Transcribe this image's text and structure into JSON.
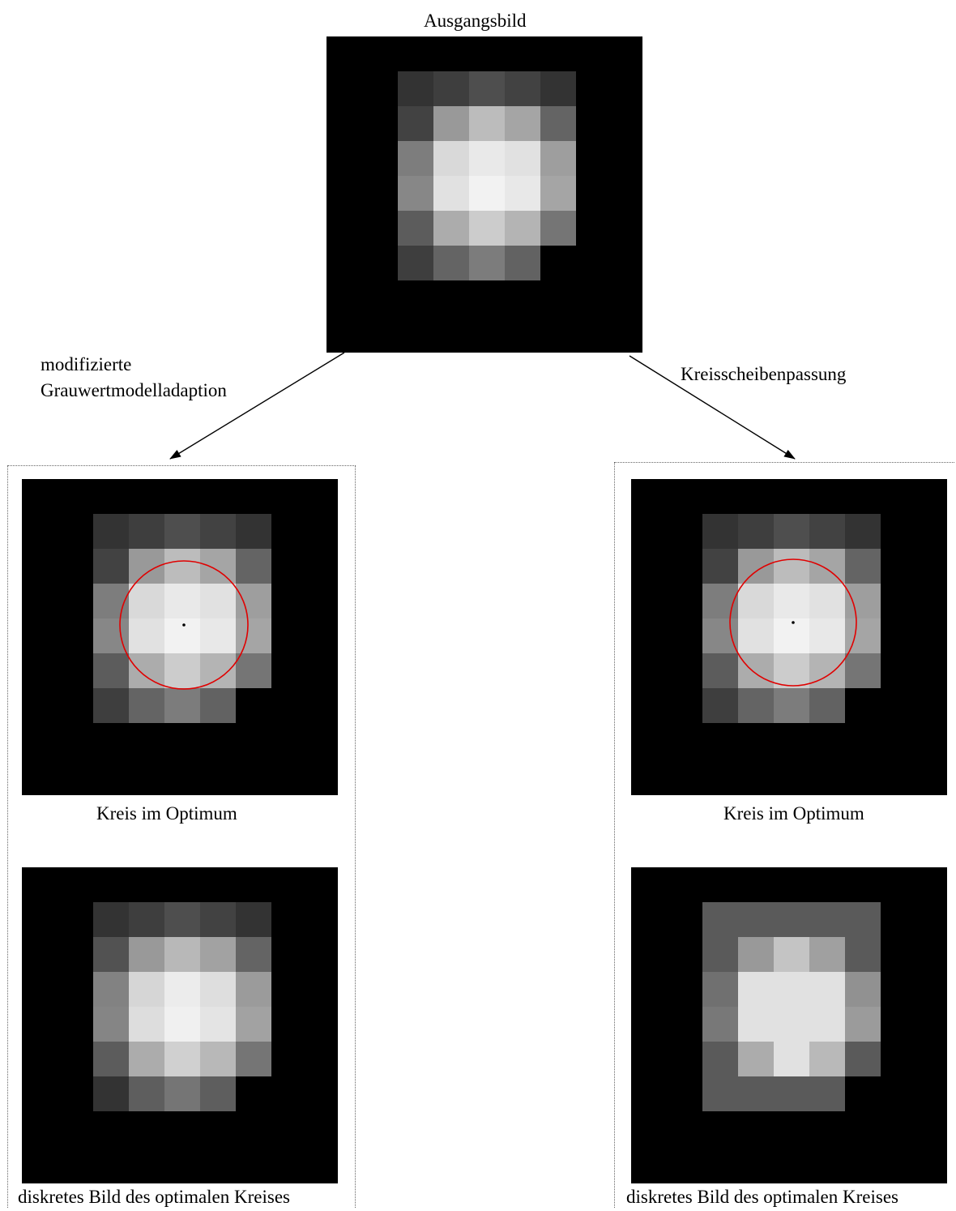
{
  "title": "Ausgangsbild",
  "branch_left_label_line1": "modifizierte",
  "branch_left_label_line2": "Grauwertmodelladaption",
  "branch_right_label": "Kreisscheibenpassung",
  "circle_caption": "Kreis im Optimum",
  "discrete_caption": "diskretes Bild des optimalen Kreises",
  "colors": {
    "background": "#000000",
    "circle": "#e00000",
    "frame": "#666666"
  },
  "images": {
    "original": [
      [
        51,
        62,
        78,
        66,
        51
      ],
      [
        66,
        153,
        188,
        165,
        100
      ],
      [
        125,
        217,
        233,
        225,
        158
      ],
      [
        135,
        225,
        242,
        232,
        165
      ],
      [
        92,
        172,
        204,
        180,
        117
      ],
      [
        62,
        100,
        124,
        98,
        null
      ]
    ],
    "gray_model": [
      [
        51,
        62,
        78,
        66,
        51
      ],
      [
        82,
        153,
        184,
        162,
        100
      ],
      [
        130,
        214,
        236,
        222,
        155
      ],
      [
        133,
        221,
        240,
        228,
        162
      ],
      [
        92,
        172,
        208,
        184,
        117
      ],
      [
        51,
        94,
        117,
        94,
        null
      ]
    ],
    "disc_fit": [
      [
        90,
        90,
        90,
        90,
        90
      ],
      [
        90,
        153,
        196,
        160,
        90
      ],
      [
        112,
        225,
        225,
        225,
        145
      ],
      [
        120,
        225,
        225,
        225,
        155
      ],
      [
        90,
        172,
        225,
        185,
        90
      ],
      [
        90,
        90,
        90,
        90,
        null
      ]
    ]
  }
}
